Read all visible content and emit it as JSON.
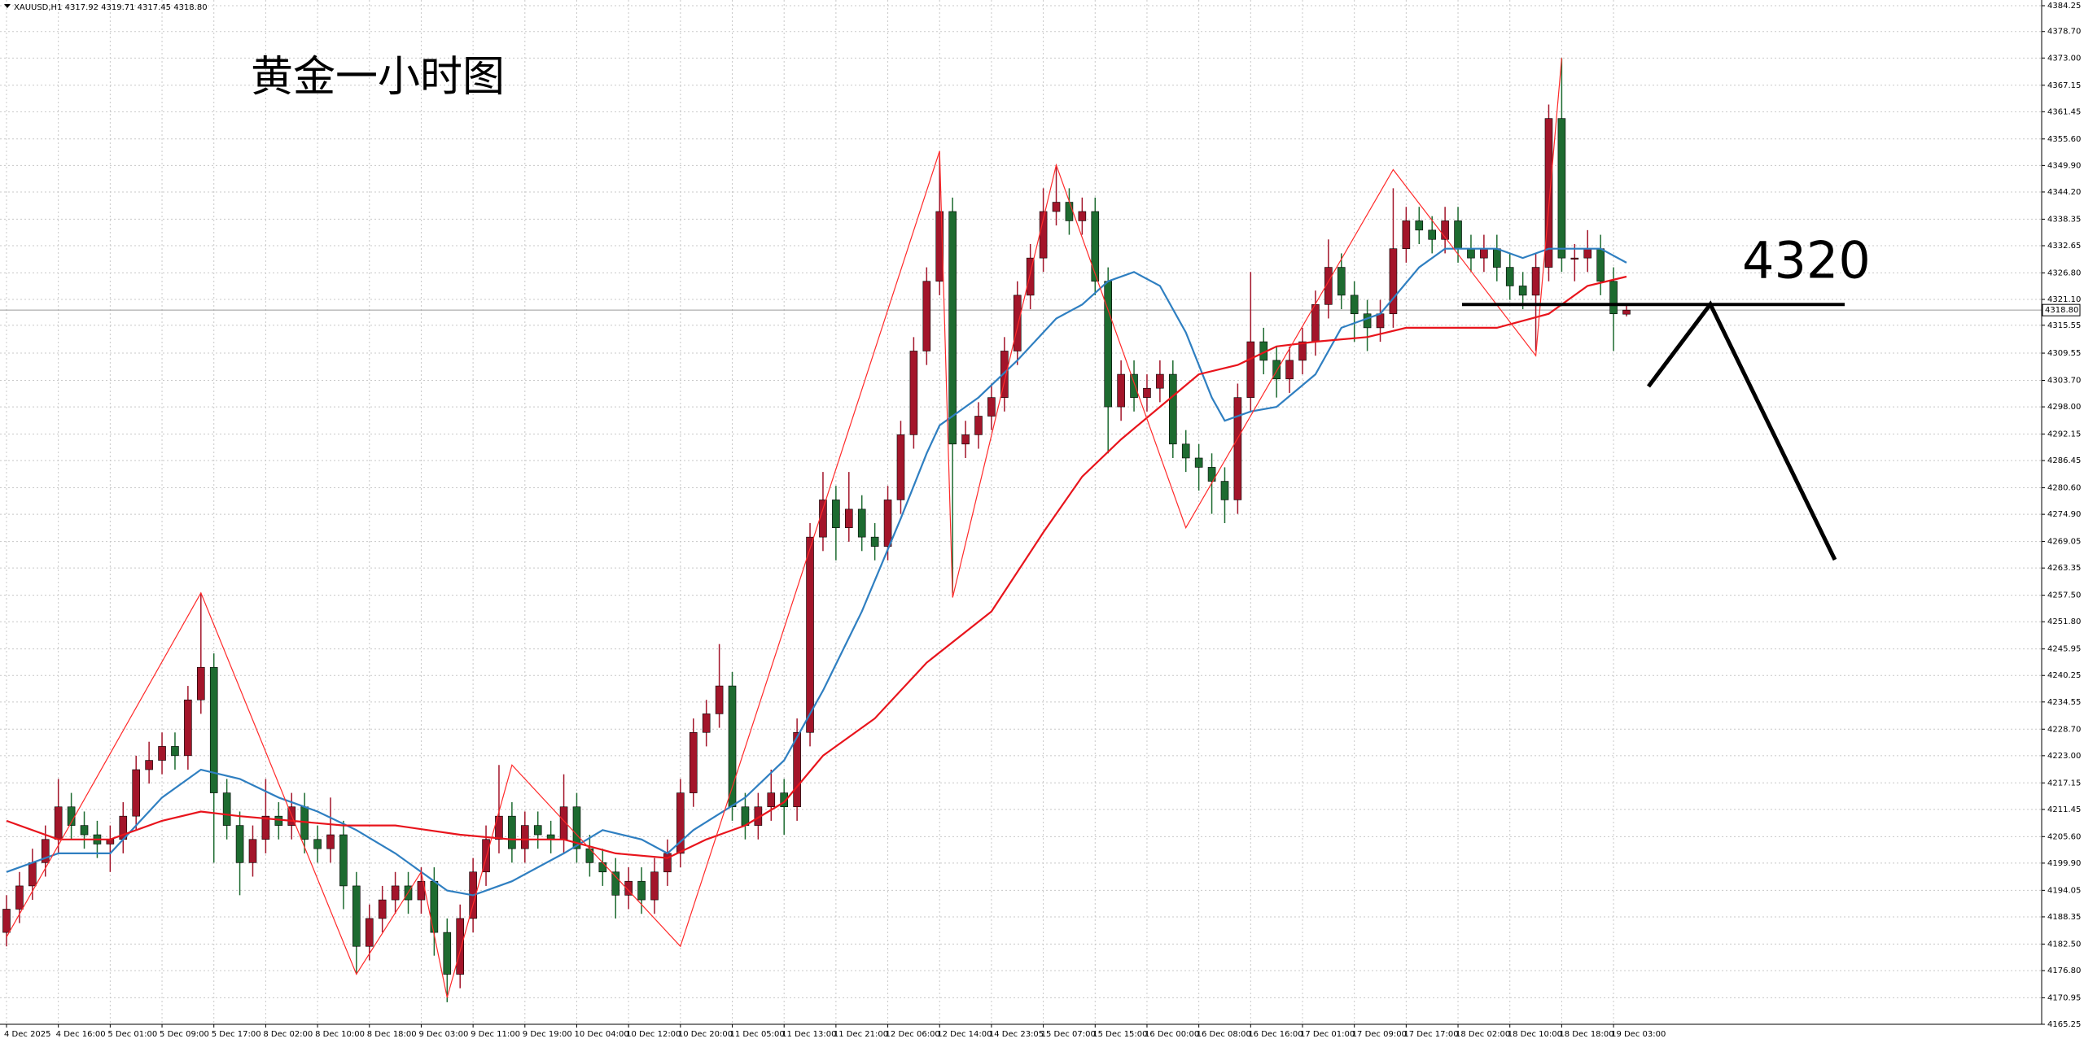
{
  "chart_data": {
    "type": "candlestick",
    "title": "XAUUSD,H1  4317.92 4319.71 4317.45 4318.80",
    "annotation": "黄金一小时图",
    "level": 4320,
    "up_color": "#a3152a",
    "down_color": "#1d6b30",
    "grid": true,
    "price": {
      "value": 4318.8,
      "label": "4318.80"
    },
    "ylim": [
      4165.25,
      4384.25
    ],
    "yticks": [
      4384.25,
      {
        "value": 4378.7,
        "label": "4378.70"
      },
      {
        "value": 4373,
        "label": "4373.00"
      },
      4367.15,
      4361.45,
      {
        "value": 4355.6,
        "label": "4355.60"
      },
      {
        "value": 4349.9,
        "label": "4349.90"
      },
      {
        "value": 4344.2,
        "label": "4344.20"
      },
      4338.35,
      4332.65,
      {
        "value": 4326.8,
        "label": "4326.80"
      },
      {
        "value": 4321.1,
        "label": "4321.10"
      },
      4315.55,
      4309.55,
      {
        "value": 4303.7,
        "label": "4303.70"
      },
      {
        "value": 4298,
        "label": "4298.00"
      },
      4292.15,
      4286.45,
      {
        "value": 4280.6,
        "label": "4280.60"
      },
      {
        "value": 4274.9,
        "label": "4274.90"
      },
      4269.05,
      4263.35,
      {
        "value": 4257.5,
        "label": "4257.50"
      },
      {
        "value": 4251.8,
        "label": "4251.80"
      },
      4245.95,
      4240.25,
      4234.55,
      {
        "value": 4228.7,
        "label": "4228.70"
      },
      {
        "value": 4223,
        "label": "4223.00"
      },
      4217.15,
      4211.45,
      {
        "value": 4205.6,
        "label": "4205.60"
      },
      {
        "value": 4199.9,
        "label": "4199.90"
      },
      4194.05,
      4188.35,
      {
        "value": 4182.5,
        "label": "4182.50"
      },
      {
        "value": 4176.8,
        "label": "4176.80"
      },
      4170.95,
      4165.25
    ],
    "categories": [
      "4 Dec 2025",
      null,
      null,
      null,
      "4 Dec 16:00",
      null,
      null,
      null,
      "5 Dec 01:00",
      null,
      null,
      null,
      "5 Dec 09:00",
      null,
      null,
      null,
      "5 Dec 17:00",
      null,
      null,
      null,
      "8 Dec 02:00",
      null,
      null,
      null,
      "8 Dec 10:00",
      null,
      null,
      null,
      "8 Dec 18:00",
      null,
      null,
      null,
      "9 Dec 03:00",
      null,
      null,
      null,
      "9 Dec 11:00",
      null,
      null,
      null,
      "9 Dec 19:00",
      null,
      null,
      null,
      "10 Dec 04:00",
      null,
      null,
      null,
      "10 Dec 12:00",
      null,
      null,
      null,
      "10 Dec 20:00",
      null,
      null,
      null,
      "11 Dec 05:00",
      null,
      null,
      null,
      "11 Dec 13:00",
      null,
      null,
      null,
      "11 Dec 21:00",
      null,
      null,
      null,
      "12 Dec 06:00",
      null,
      null,
      null,
      "12 Dec 14:00",
      null,
      null,
      null,
      "14 Dec 23:05",
      null,
      null,
      null,
      "15 Dec 07:00",
      null,
      null,
      null,
      "15 Dec 15:00",
      null,
      null,
      null,
      "16 Dec 00:00",
      null,
      null,
      null,
      "16 Dec 08:00",
      null,
      null,
      null,
      "16 Dec 16:00",
      null,
      null,
      null,
      "17 Dec 01:00",
      null,
      null,
      null,
      "17 Dec 09:00",
      null,
      null,
      null,
      "17 Dec 17:00",
      null,
      null,
      null,
      "18 Dec 02:00",
      null,
      null,
      null,
      "18 Dec 10:00",
      null,
      null,
      null,
      "18 Dec 18:00",
      null,
      null,
      null,
      "19 Dec 03:00",
      null
    ],
    "candles": [
      [
        4185,
        4193,
        4182,
        4190
      ],
      [
        4190,
        4198,
        4187,
        4195
      ],
      [
        4195,
        4203,
        4192,
        4200
      ],
      [
        4200,
        4208,
        4197,
        4205
      ],
      [
        4205,
        4218,
        4202,
        4212
      ],
      [
        4212,
        4215,
        4205,
        4208
      ],
      [
        4208,
        4211,
        4203,
        4206
      ],
      [
        4206,
        4209,
        4201,
        4204
      ],
      [
        4204,
        4208,
        4198,
        4205
      ],
      [
        4205,
        4213,
        4202,
        4210
      ],
      [
        4210,
        4223,
        4207,
        4220
      ],
      [
        4220,
        4226,
        4217,
        4222
      ],
      [
        4222,
        4228,
        4219,
        4225
      ],
      [
        4225,
        4228,
        4220,
        4223
      ],
      [
        4223,
        4238,
        4220,
        4235
      ],
      [
        4235,
        4258,
        4232,
        4242
      ],
      [
        4242,
        4245,
        4200,
        4215
      ],
      [
        4215,
        4218,
        4205,
        4208
      ],
      [
        4208,
        4211,
        4193,
        4200
      ],
      [
        4200,
        4208,
        4197,
        4205
      ],
      [
        4205,
        4218,
        4202,
        4210
      ],
      [
        4210,
        4213,
        4205,
        4208
      ],
      [
        4208,
        4215,
        4205,
        4212
      ],
      [
        4212,
        4215,
        4202,
        4205
      ],
      [
        4205,
        4208,
        4200,
        4203
      ],
      [
        4203,
        4214,
        4200,
        4206
      ],
      [
        4206,
        4209,
        4190,
        4195
      ],
      [
        4195,
        4198,
        4176,
        4182
      ],
      [
        4182,
        4191,
        4179,
        4188
      ],
      [
        4188,
        4195,
        4185,
        4192
      ],
      [
        4192,
        4198,
        4189,
        4195
      ],
      [
        4195,
        4198,
        4189,
        4192
      ],
      [
        4192,
        4199,
        4189,
        4196
      ],
      [
        4196,
        4199,
        4180,
        4185
      ],
      [
        4185,
        4188,
        4170,
        4176
      ],
      [
        4176,
        4191,
        4173,
        4188
      ],
      [
        4188,
        4201,
        4185,
        4198
      ],
      [
        4198,
        4208,
        4195,
        4205
      ],
      [
        4205,
        4221,
        4202,
        4210
      ],
      [
        4210,
        4213,
        4200,
        4203
      ],
      [
        4203,
        4211,
        4200,
        4208
      ],
      [
        4208,
        4211,
        4203,
        4206
      ],
      [
        4206,
        4209,
        4202,
        4205
      ],
      [
        4205,
        4219,
        4202,
        4212
      ],
      [
        4212,
        4215,
        4200,
        4203
      ],
      [
        4203,
        4206,
        4197,
        4200
      ],
      [
        4200,
        4203,
        4195,
        4198
      ],
      [
        4198,
        4201,
        4188,
        4193
      ],
      [
        4193,
        4199,
        4190,
        4196
      ],
      [
        4196,
        4199,
        4189,
        4192
      ],
      [
        4192,
        4201,
        4189,
        4198
      ],
      [
        4198,
        4205,
        4195,
        4202
      ],
      [
        4202,
        4218,
        4199,
        4215
      ],
      [
        4215,
        4231,
        4212,
        4228
      ],
      [
        4228,
        4235,
        4225,
        4232
      ],
      [
        4232,
        4247,
        4229,
        4238
      ],
      [
        4238,
        4241,
        4209,
        4212
      ],
      [
        4212,
        4215,
        4205,
        4208
      ],
      [
        4208,
        4215,
        4205,
        4212
      ],
      [
        4212,
        4220,
        4209,
        4215
      ],
      [
        4215,
        4218,
        4206,
        4212
      ],
      [
        4212,
        4231,
        4209,
        4228
      ],
      [
        4228,
        4273,
        4225,
        4270
      ],
      [
        4270,
        4284,
        4267,
        4278
      ],
      [
        4278,
        4281,
        4265,
        4272
      ],
      [
        4272,
        4284,
        4269,
        4276
      ],
      [
        4276,
        4279,
        4267,
        4270
      ],
      [
        4270,
        4273,
        4265,
        4268
      ],
      [
        4268,
        4281,
        4265,
        4278
      ],
      [
        4278,
        4295,
        4275,
        4292
      ],
      [
        4292,
        4313,
        4289,
        4310
      ],
      [
        4310,
        4328,
        4307,
        4325
      ],
      [
        4325,
        4352,
        4322,
        4340
      ],
      [
        4340,
        4343,
        4258,
        4290
      ],
      [
        4290,
        4295,
        4287,
        4292
      ],
      [
        4292,
        4299,
        4289,
        4296
      ],
      [
        4296,
        4303,
        4293,
        4300
      ],
      [
        4300,
        4313,
        4297,
        4310
      ],
      [
        4310,
        4325,
        4307,
        4322
      ],
      [
        4322,
        4333,
        4319,
        4330
      ],
      [
        4330,
        4345,
        4327,
        4340
      ],
      [
        4340,
        4350,
        4337,
        4342
      ],
      [
        4342,
        4345,
        4335,
        4338
      ],
      [
        4338,
        4343,
        4335,
        4340
      ],
      [
        4340,
        4343,
        4322,
        4325
      ],
      [
        4325,
        4328,
        4288,
        4298
      ],
      [
        4298,
        4308,
        4295,
        4305
      ],
      [
        4305,
        4308,
        4297,
        4300
      ],
      [
        4300,
        4305,
        4297,
        4302
      ],
      [
        4302,
        4308,
        4299,
        4305
      ],
      [
        4305,
        4308,
        4287,
        4290
      ],
      [
        4290,
        4293,
        4284,
        4287
      ],
      [
        4287,
        4290,
        4280,
        4285
      ],
      [
        4285,
        4288,
        4275,
        4282
      ],
      [
        4282,
        4285,
        4273,
        4278
      ],
      [
        4278,
        4303,
        4275,
        4300
      ],
      [
        4300,
        4327,
        4297,
        4312
      ],
      [
        4312,
        4315,
        4305,
        4308
      ],
      [
        4308,
        4311,
        4300,
        4304
      ],
      [
        4304,
        4311,
        4301,
        4308
      ],
      [
        4308,
        4315,
        4305,
        4312
      ],
      [
        4312,
        4323,
        4309,
        4320
      ],
      [
        4320,
        4334,
        4317,
        4328
      ],
      [
        4328,
        4331,
        4319,
        4322
      ],
      [
        4322,
        4325,
        4312,
        4318
      ],
      [
        4318,
        4321,
        4310,
        4315
      ],
      [
        4315,
        4321,
        4312,
        4318
      ],
      [
        4318,
        4345,
        4315,
        4332
      ],
      [
        4332,
        4341,
        4329,
        4338
      ],
      [
        4338,
        4341,
        4333,
        4336
      ],
      [
        4336,
        4339,
        4331,
        4334
      ],
      [
        4334,
        4341,
        4331,
        4338
      ],
      [
        4338,
        4341,
        4329,
        4332
      ],
      [
        4332,
        4335,
        4327,
        4330
      ],
      [
        4330,
        4335,
        4327,
        4332
      ],
      [
        4332,
        4335,
        4325,
        4328
      ],
      [
        4328,
        4331,
        4321,
        4324
      ],
      [
        4324,
        4327,
        4319,
        4322
      ],
      [
        4322,
        4331,
        4310,
        4328
      ],
      [
        4328,
        4363,
        4325,
        4360
      ],
      [
        4360,
        4373,
        4327,
        4330
      ],
      [
        4330,
        4333,
        4325,
        4330
      ],
      [
        4330,
        4336,
        4327,
        4332
      ],
      [
        4332,
        4335,
        4322,
        4325
      ],
      [
        4325,
        4328,
        4310,
        4318
      ],
      [
        4317.92,
        4319.71,
        4317.45,
        4318.8
      ]
    ],
    "series": [
      {
        "color": "#2f7fc1",
        "x": [
          0,
          4,
          8,
          12,
          15,
          18,
          21,
          24,
          27,
          30,
          34,
          36,
          39,
          43,
          46,
          49,
          51,
          53,
          57,
          60,
          63,
          66,
          69,
          71,
          72,
          75,
          78,
          81,
          83,
          85,
          87,
          89,
          91,
          93,
          94,
          96,
          98,
          101,
          103,
          106,
          109,
          111,
          113,
          115,
          117,
          119,
          123,
          125
        ],
        "values": [
          4198,
          4202,
          4202,
          4214,
          4220,
          4218,
          4214,
          4211,
          4207,
          4202,
          4194,
          4193,
          4196,
          4202,
          4207,
          4205,
          4202,
          4207,
          4214,
          4222,
          4237,
          4254,
          4274,
          4288,
          4294,
          4300,
          4308,
          4317,
          4320,
          4325,
          4327,
          4324,
          4314,
          4300,
          4295,
          4297,
          4298,
          4305,
          4315,
          4318,
          4328,
          4332,
          4332,
          4332,
          4330,
          4332,
          4332,
          4329
        ]
      },
      {
        "color": "#e8141c",
        "x": [
          0,
          4,
          8,
          12,
          15,
          18,
          22,
          26,
          30,
          35,
          39,
          43,
          47,
          51,
          54,
          57,
          60,
          63,
          67,
          71,
          76,
          80,
          83,
          86,
          89,
          92,
          95,
          98,
          101,
          105,
          108,
          112,
          115,
          119,
          122,
          125
        ],
        "values": [
          4209,
          4205,
          4205,
          4209,
          4211,
          4210,
          4209,
          4208,
          4208,
          4206,
          4205,
          4205,
          4202,
          4201,
          4205,
          4208,
          4213,
          4223,
          4231,
          4243,
          4254,
          4271,
          4283,
          4291,
          4298,
          4305,
          4307,
          4311,
          4312,
          4313,
          4315,
          4315,
          4315,
          4318,
          4324,
          4326
        ]
      }
    ],
    "zigzag": {
      "color": "#ff2a2a",
      "x": [
        0,
        15,
        27,
        32,
        34,
        39,
        52,
        72,
        73,
        81,
        91,
        107,
        118,
        120
      ],
      "values": [
        4184,
        4258,
        4176,
        4198,
        4171,
        4221,
        4182,
        4353,
        4257,
        4350,
        4272,
        4349,
        4309,
        4373
      ]
    }
  }
}
